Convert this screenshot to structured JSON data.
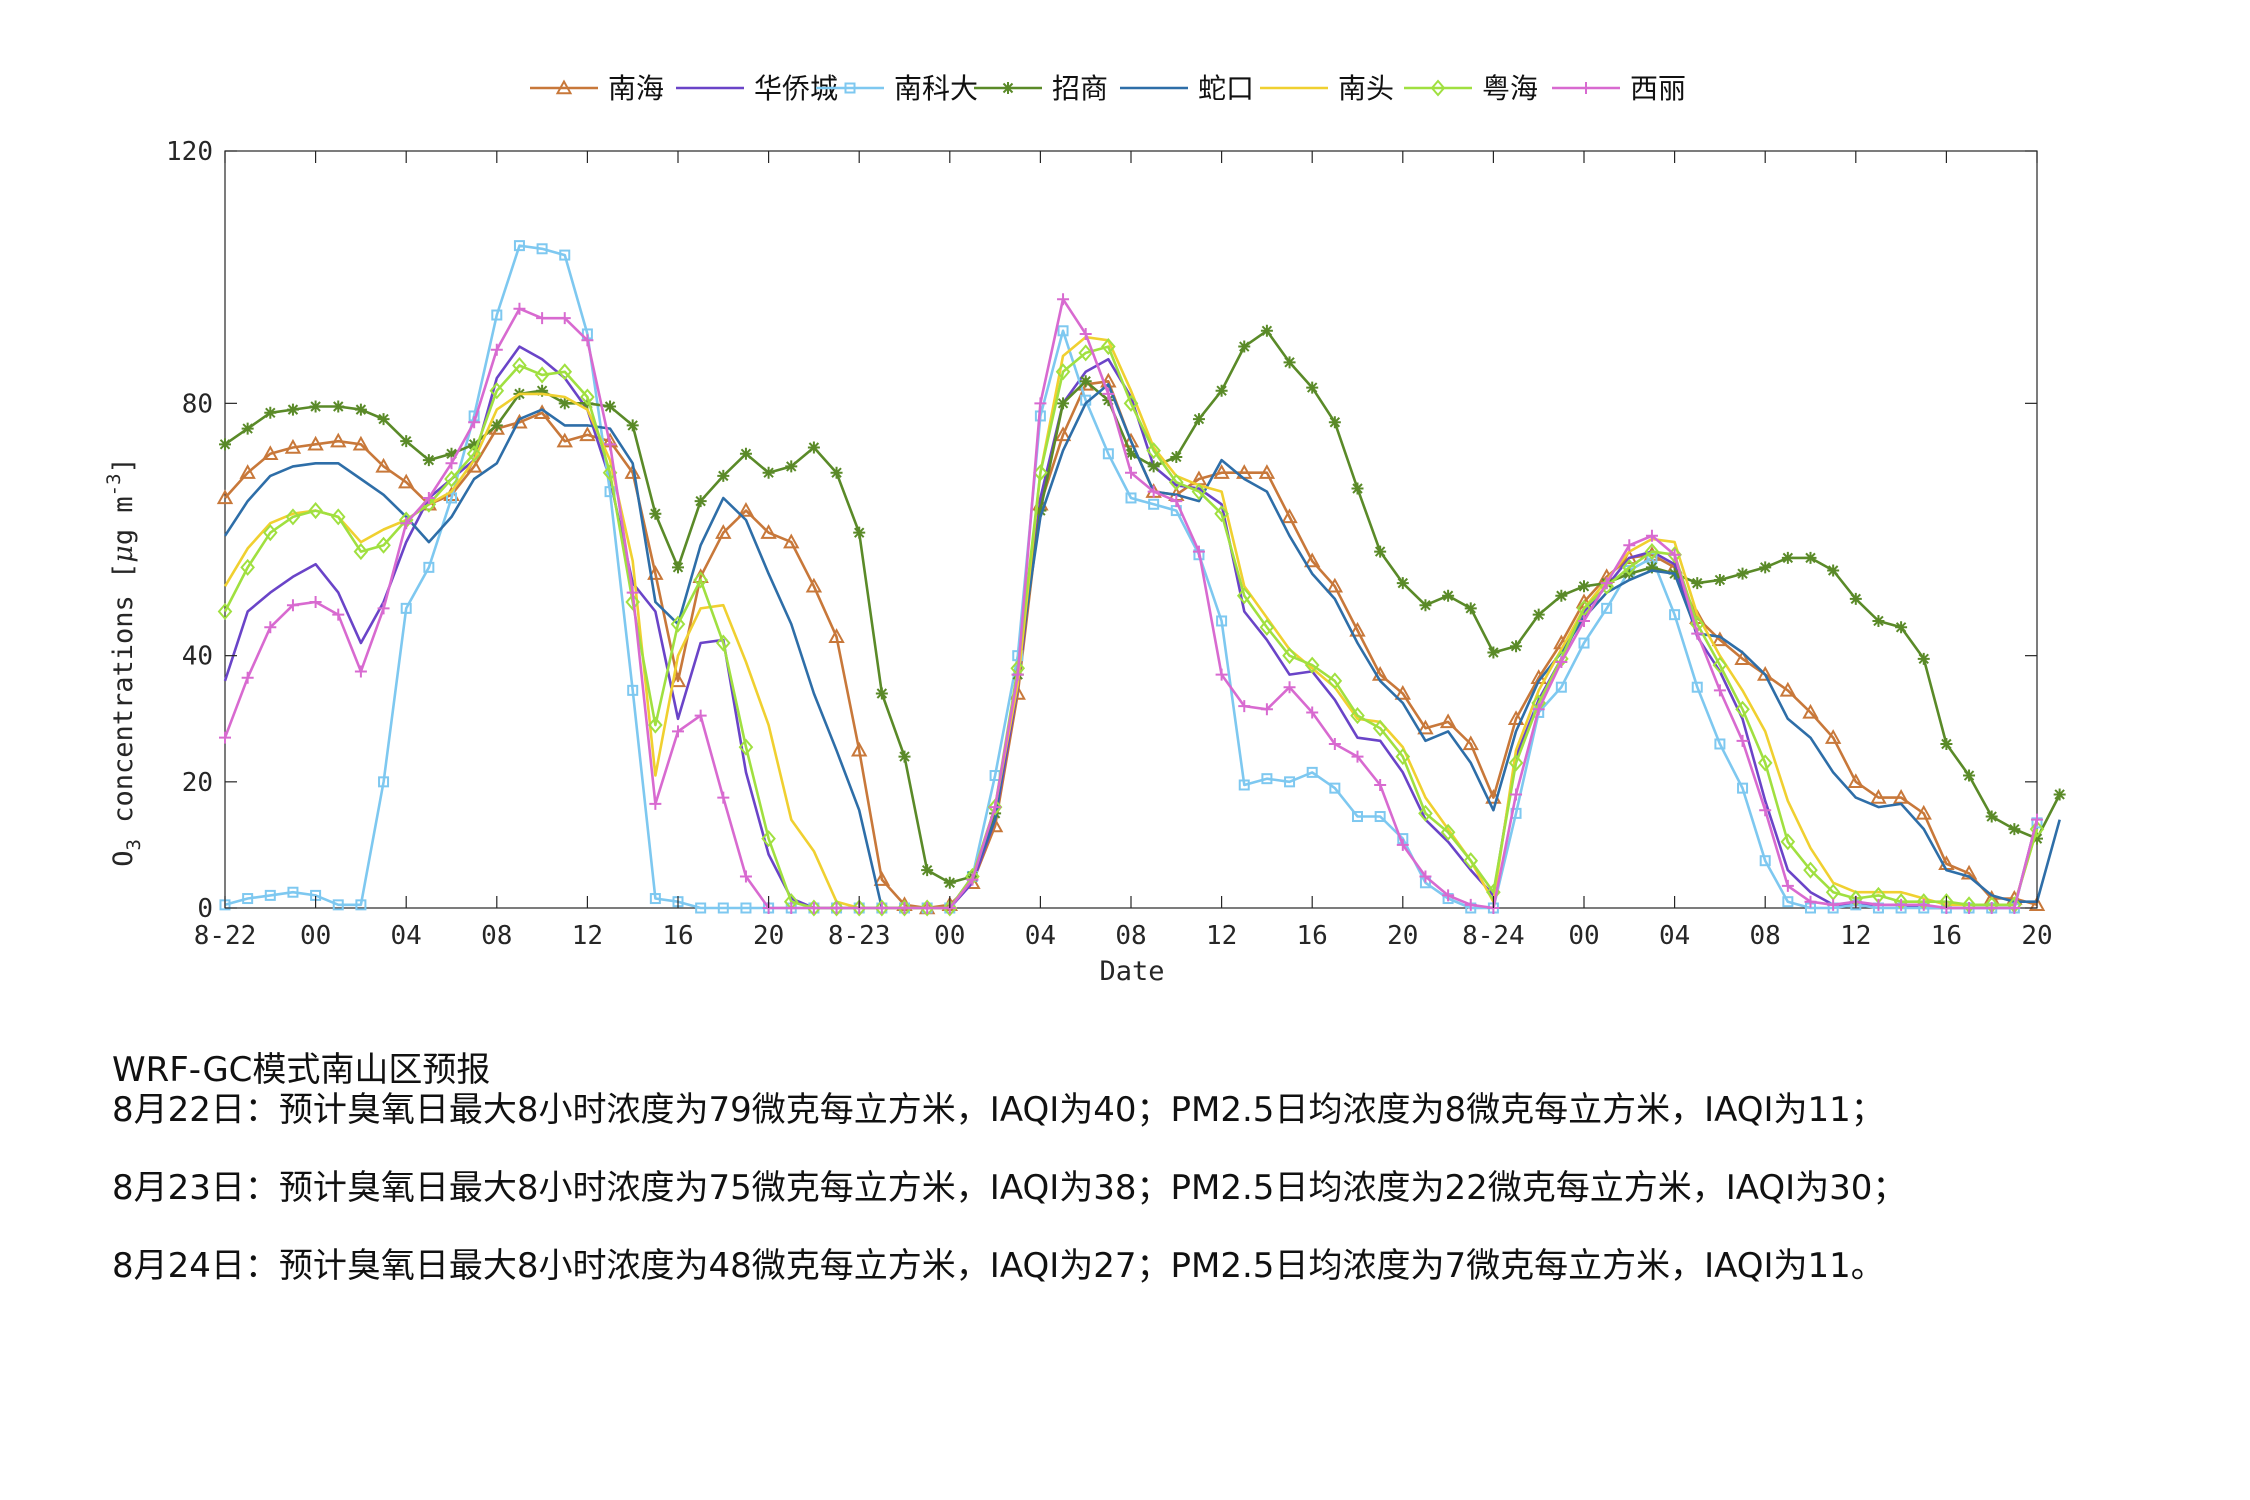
{
  "chart_data": {
    "type": "line",
    "xlabel": "Date",
    "ylabel": "O3 concentrations [μg m-3]",
    "ylim": [
      0,
      120
    ],
    "yticks": [
      "0",
      "20",
      "40",
      "80",
      "120"
    ],
    "xticks": [
      {
        "i": 0,
        "label": "8-22"
      },
      {
        "i": 4,
        "label": "00"
      },
      {
        "i": 8,
        "label": "04"
      },
      {
        "i": 12,
        "label": "08"
      },
      {
        "i": 16,
        "label": "12"
      },
      {
        "i": 20,
        "label": "16"
      },
      {
        "i": 24,
        "label": "20"
      },
      {
        "i": 28,
        "label": "8-23"
      },
      {
        "i": 32,
        "label": "00"
      },
      {
        "i": 36,
        "label": "04"
      },
      {
        "i": 40,
        "label": "08"
      },
      {
        "i": 44,
        "label": "12"
      },
      {
        "i": 48,
        "label": "16"
      },
      {
        "i": 52,
        "label": "20"
      },
      {
        "i": 56,
        "label": "8-24"
      },
      {
        "i": 60,
        "label": "00"
      },
      {
        "i": 64,
        "label": "04"
      },
      {
        "i": 68,
        "label": "08"
      },
      {
        "i": 72,
        "label": "12"
      },
      {
        "i": 76,
        "label": "16"
      },
      {
        "i": 80,
        "label": "20"
      }
    ],
    "xmax": 80,
    "legend_position": "top-center",
    "grid": false,
    "series": [
      {
        "name": "南海",
        "color": "#c8783a",
        "marker": "triangle",
        "values": [
          65,
          69,
          72,
          73,
          73.5,
          74,
          73.5,
          70,
          67.5,
          64,
          65.5,
          70,
          76,
          77,
          78.5,
          74,
          75,
          74,
          69,
          53,
          36,
          52.5,
          59.5,
          63,
          59.5,
          58,
          51,
          43,
          25,
          4.5,
          0.5,
          0,
          0.5,
          4,
          13,
          34,
          64,
          75,
          83,
          83.5,
          74,
          66,
          65.5,
          68,
          69,
          69,
          69,
          62,
          55,
          51,
          44,
          37,
          34,
          28.5,
          29.5,
          26,
          17.5,
          30,
          36.5,
          42,
          48.5,
          52.5,
          55.5,
          56,
          54,
          46,
          42.5,
          39.5,
          37,
          34.5,
          31,
          27,
          20,
          17.5,
          17.5,
          15,
          7,
          5.5,
          1.5,
          1.5,
          0.5
        ]
      },
      {
        "name": "华侨城",
        "color": "#6a44c8",
        "marker": "none",
        "values": [
          36,
          47,
          50,
          52.5,
          54.5,
          50,
          42,
          48.5,
          58,
          65,
          68,
          71,
          84,
          89,
          87,
          84,
          79,
          68,
          51.5,
          47,
          30,
          42,
          42.5,
          21.5,
          8.5,
          1.5,
          0,
          0,
          0,
          0,
          0,
          0,
          0,
          4,
          14,
          35,
          65,
          80,
          85,
          87,
          81,
          70,
          67,
          66.5,
          64,
          47,
          42.5,
          37,
          37.5,
          33,
          27,
          26.5,
          21.5,
          14,
          10.5,
          6,
          2,
          24,
          33,
          39.5,
          47,
          51,
          55.5,
          56.5,
          54.5,
          43,
          37.5,
          30,
          17,
          6,
          2.5,
          0.5,
          0.5,
          0.5,
          0.5,
          0,
          0,
          0,
          0,
          0,
          14
        ]
      },
      {
        "name": "南科大",
        "color": "#7ec8f0",
        "marker": "square",
        "values": [
          0.5,
          1.5,
          2,
          2.5,
          2,
          0.5,
          0.5,
          20,
          47.5,
          54,
          65,
          78,
          94,
          105,
          104.5,
          103.5,
          91,
          66,
          34.5,
          1.5,
          1,
          0,
          0,
          0,
          0,
          0,
          0,
          0,
          0,
          0,
          0,
          0,
          0,
          5,
          21,
          40,
          78,
          91.5,
          80.5,
          72,
          65,
          64,
          63,
          56,
          45.5,
          19.5,
          20.5,
          20,
          21.5,
          19,
          14.5,
          14.5,
          11,
          4,
          1.5,
          0,
          0,
          15,
          31,
          35,
          42,
          47.5,
          53.5,
          55.5,
          46.5,
          35,
          26,
          19,
          7.5,
          1,
          0,
          0,
          0.5,
          0,
          0,
          0,
          0,
          0,
          0,
          0,
          13.5
        ]
      },
      {
        "name": "招商",
        "color": "#5a8a28",
        "marker": "star",
        "values": [
          73.5,
          76,
          78.5,
          79,
          79.5,
          79.5,
          79,
          77.5,
          74,
          71,
          72,
          73.5,
          76.5,
          81.5,
          82,
          80,
          80,
          79.5,
          76.5,
          62.5,
          54,
          64.5,
          68.5,
          72,
          69,
          70,
          73,
          69,
          59.5,
          34,
          24,
          6,
          4,
          5,
          15,
          37,
          63,
          80,
          83.5,
          80.5,
          72,
          70,
          71.5,
          77.5,
          82,
          89,
          91.5,
          86.5,
          82.5,
          77,
          66.5,
          56.5,
          51.5,
          48,
          49.5,
          47.5,
          40.5,
          41.5,
          46.5,
          49.5,
          51,
          51.5,
          53,
          54,
          53,
          51.5,
          52,
          53,
          54,
          55.5,
          55.5,
          53.5,
          49,
          45.5,
          44.5,
          39.5,
          26,
          21,
          14.5,
          12.5,
          11,
          18
        ]
      },
      {
        "name": "蛇口",
        "color": "#2e6ea8",
        "marker": "none",
        "values": [
          59,
          64.5,
          68.5,
          70,
          70.5,
          70.5,
          68,
          65.5,
          62,
          58,
          62,
          68,
          70.5,
          77.5,
          79,
          76.5,
          76.5,
          76,
          70.5,
          48.5,
          45,
          57.5,
          65,
          61.5,
          53,
          45,
          34,
          25,
          15.5,
          0,
          0,
          0,
          0,
          5,
          14,
          38,
          62,
          72.5,
          80,
          83,
          74,
          66,
          65.5,
          64.5,
          71,
          68,
          66,
          59,
          53,
          49,
          42,
          36,
          32.5,
          26.5,
          28,
          23,
          15.5,
          28,
          36,
          40.5,
          46,
          50,
          52,
          53.5,
          53,
          43.5,
          43,
          40.5,
          37,
          30,
          27,
          21.5,
          17.5,
          16,
          16.5,
          12.5,
          6,
          5,
          2,
          1,
          1,
          14
        ]
      },
      {
        "name": "南头",
        "color": "#f0d030",
        "marker": "none",
        "values": [
          51,
          57,
          61,
          62.5,
          63,
          62,
          58,
          60,
          61.5,
          64,
          66,
          71,
          79,
          81.5,
          81.5,
          81,
          79,
          71,
          55,
          21,
          40,
          47.5,
          48,
          39,
          29,
          14,
          9,
          1,
          0,
          0,
          0,
          0,
          0,
          5,
          16,
          35.5,
          69,
          87.5,
          90.5,
          90,
          82,
          73,
          68.5,
          67,
          66,
          51,
          46,
          41,
          38,
          35,
          30,
          29.5,
          25.5,
          17.5,
          12.5,
          7.5,
          1,
          25,
          34.5,
          41,
          47.5,
          52,
          56.5,
          58.5,
          58,
          46.5,
          40,
          34.5,
          28,
          17,
          9.5,
          4,
          2.5,
          2.5,
          2.5,
          1.5,
          0.5,
          0.5,
          0.5,
          0.5,
          12.5
        ]
      },
      {
        "name": "粤海",
        "color": "#a0e040",
        "marker": "diamond",
        "values": [
          47,
          54,
          59.5,
          62,
          63,
          62,
          56.5,
          57.5,
          61.5,
          64,
          68,
          72,
          82,
          86,
          84.5,
          85,
          81,
          69,
          48.5,
          29,
          45,
          52,
          42,
          25.5,
          11,
          1,
          0,
          0,
          0,
          0,
          0,
          0,
          0,
          5,
          16,
          38,
          69,
          85,
          88,
          89,
          80,
          72.5,
          67.5,
          66,
          62.5,
          49.5,
          44.5,
          40,
          38.5,
          36,
          30.5,
          28.5,
          24,
          15,
          12,
          7.5,
          2.5,
          23,
          32.5,
          39.5,
          47.5,
          51,
          54,
          56.5,
          56,
          45,
          38.5,
          31.5,
          23,
          10.5,
          6,
          2.5,
          1.5,
          2,
          1,
          1,
          1,
          0.5,
          0.5,
          0.5,
          12.5
        ]
      },
      {
        "name": "西丽",
        "color": "#d86ad0",
        "marker": "plus",
        "values": [
          27,
          36.5,
          44.5,
          48,
          48.5,
          46.5,
          37.5,
          47.5,
          61,
          65,
          70.5,
          77,
          88.5,
          95,
          93.5,
          93.5,
          90,
          73.5,
          50,
          16.5,
          28,
          30.5,
          17.5,
          5,
          0,
          0,
          0,
          0,
          0,
          0,
          0,
          0,
          0,
          4.5,
          16,
          37,
          80,
          96.5,
          91,
          81.5,
          69,
          66,
          64.5,
          56.5,
          37,
          32,
          31.5,
          35,
          31,
          26,
          24,
          19.5,
          10,
          5,
          2,
          0.5,
          0,
          18,
          31.5,
          39,
          45.5,
          51.5,
          57.5,
          59,
          56,
          43.5,
          34.5,
          26.5,
          15.5,
          3.5,
          1,
          0.5,
          1,
          0.5,
          0.5,
          0.5,
          0,
          0,
          0,
          0,
          14
        ]
      }
    ]
  },
  "text": {
    "header": "WRF-GC模式南山区预报",
    "lines": [
      "8月22日：预计臭氧日最大8小时浓度为79微克每立方米，IAQI为40；PM2.5日均浓度为8微克每立方米，IAQI为11；",
      "8月23日：预计臭氧日最大8小时浓度为75微克每立方米，IAQI为38；PM2.5日均浓度为22微克每立方米，IAQI为30；",
      "8月24日：预计臭氧日最大8小时浓度为48微克每立方米，IAQI为27；PM2.5日均浓度为7微克每立方米，IAQI为11。"
    ]
  }
}
